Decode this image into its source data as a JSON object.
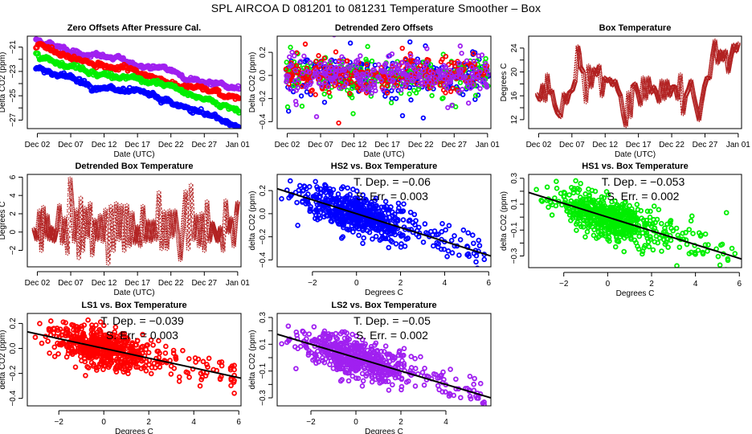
{
  "figure": {
    "title": "SPL   AIRCOA D   081201 to 081231   Temperature Smoother – Box"
  },
  "chart_data": [
    {
      "id": "zero-offsets",
      "type": "scatter",
      "title": "Zero Offsets After Pressure Cal.",
      "xlabel": "Date (UTC)",
      "ylabel": "Delta CO2 (ppm)",
      "x_ticks": [
        "Dec 02",
        "Dec 07",
        "Dec 12",
        "Dec 17",
        "Dec 22",
        "Dec 27",
        "Jan 01"
      ],
      "x_tick_days": [
        1,
        6,
        11,
        16,
        21,
        26,
        31
      ],
      "xlim_days": [
        -0.5,
        31.5
      ],
      "y_ticks": [
        -27,
        -25,
        -23,
        -21
      ],
      "y_minor_ticks": [
        -26,
        -24,
        -22
      ],
      "ylim": [
        -27.7,
        -20.1
      ],
      "series": [
        {
          "name": "LS2",
          "color": "#a020f0",
          "start": -20.4,
          "end": -24.5,
          "noise": 0.12
        },
        {
          "name": "LS1",
          "color": "#ff0000",
          "start": -21.0,
          "end": -25.3,
          "noise": 0.12
        },
        {
          "name": "HS1",
          "color": "#00ee00",
          "start": -21.5,
          "end": -26.1,
          "noise": 0.12
        },
        {
          "name": "HS2",
          "color": "#0000ff",
          "start": -22.7,
          "end": -27.5,
          "noise": 0.15
        }
      ]
    },
    {
      "id": "detrended-zero-offsets",
      "type": "scatter",
      "title": "Detrended Zero Offsets",
      "xlabel": "Date (UTC)",
      "ylabel": "Delta CO2 (ppm)",
      "x_ticks": [
        "Dec 02",
        "Dec 07",
        "Dec 12",
        "Dec 17",
        "Dec 22",
        "Dec 27",
        "Jan 01"
      ],
      "x_tick_days": [
        1,
        6,
        11,
        16,
        21,
        26,
        31
      ],
      "xlim_days": [
        -0.5,
        31.5
      ],
      "y_ticks": [
        "-0.4",
        "-0.2",
        "0.0",
        "0.2"
      ],
      "y_tick_values": [
        -0.4,
        -0.2,
        0.0,
        0.2
      ],
      "ylim": [
        -0.46,
        0.34
      ],
      "series": [
        {
          "name": "HS2",
          "color": "#0000ff",
          "spread": 0.11
        },
        {
          "name": "HS1",
          "color": "#00ee00",
          "spread": 0.1
        },
        {
          "name": "LS1",
          "color": "#ff0000",
          "spread": 0.1
        },
        {
          "name": "LS2",
          "color": "#a020f0",
          "spread": 0.09
        }
      ]
    },
    {
      "id": "box-temperature",
      "type": "line",
      "title": "Box Temperature",
      "xlabel": "Date (UTC)",
      "ylabel": "Degrees C",
      "x_ticks": [
        "Dec 02",
        "Dec 07",
        "Dec 12",
        "Dec 17",
        "Dec 22",
        "Dec 27",
        "Jan 01"
      ],
      "x_tick_days": [
        1,
        6,
        11,
        16,
        21,
        26,
        31
      ],
      "xlim_days": [
        -0.5,
        31.5
      ],
      "y_ticks": [
        12,
        16,
        20,
        24
      ],
      "y_minor_ticks": [
        14,
        18,
        22
      ],
      "ylim": [
        10.5,
        26
      ],
      "color": "#b22222",
      "days": [
        0.8,
        1.2,
        1.6,
        2.0,
        2.3,
        2.6,
        3.0,
        3.4,
        3.8,
        4.3,
        4.8,
        5.2,
        5.6,
        6.1,
        6.5,
        6.9,
        7.1,
        7.3,
        7.7,
        8.1,
        8.5,
        8.9,
        9.3,
        9.7,
        10.1,
        10.5,
        10.9,
        11.3,
        11.7,
        12.1,
        12.5,
        12.9,
        13.3,
        13.7,
        14.1,
        14.5,
        14.8,
        15.1,
        15.5,
        15.9,
        16.3,
        16.7,
        17.1,
        17.5,
        17.9,
        18.3,
        18.7,
        19.1,
        19.5,
        19.9,
        20.3,
        20.7,
        21.1,
        21.5,
        21.9,
        22.3,
        22.7,
        23.1,
        23.5,
        23.9,
        24.3,
        24.7,
        25.1,
        25.5,
        25.9,
        26.3,
        26.7,
        27.1,
        27.5,
        27.9,
        28.3,
        28.7,
        29.1,
        29.5,
        29.9,
        30.3,
        30.7,
        31.0
      ],
      "values": [
        16.2,
        15.3,
        17.8,
        15.2,
        19.5,
        16.5,
        16.8,
        14.5,
        13.2,
        12.5,
        16.3,
        14.8,
        16.5,
        17.0,
        18.5,
        24.2,
        23.0,
        20.8,
        20.0,
        15.0,
        21.0,
        17.5,
        20.5,
        19.5,
        21.0,
        16.0,
        19.0,
        18.5,
        18.8,
        17.8,
        18.5,
        17.0,
        16.0,
        13.0,
        11.0,
        16.5,
        12.5,
        17.5,
        18.0,
        16.5,
        14.5,
        19.0,
        15.5,
        19.0,
        16.5,
        17.5,
        16.5,
        15.0,
        18.5,
        15.5,
        18.5,
        16.0,
        17.5,
        17.5,
        15.5,
        19.5,
        13.0,
        16.0,
        17.0,
        18.5,
        16.0,
        14.0,
        12.0,
        15.0,
        17.5,
        19.0,
        19.0,
        22.5,
        25.2,
        21.5,
        23.5,
        22.0,
        23.5,
        20.0,
        22.5,
        24.5,
        23.5,
        24.8
      ]
    },
    {
      "id": "detrended-box-temperature",
      "type": "line",
      "title": "Detrended Box Temperature",
      "xlabel": "Date (UTC)",
      "ylabel": "Degrees C",
      "x_ticks": [
        "Dec 02",
        "Dec 07",
        "Dec 12",
        "Dec 17",
        "Dec 22",
        "Dec 27",
        "Jan 01"
      ],
      "x_tick_days": [
        1,
        6,
        11,
        16,
        21,
        26,
        31
      ],
      "xlim_days": [
        -0.5,
        31.5
      ],
      "y_ticks": [
        "-2",
        "0",
        "2",
        "4",
        "6"
      ],
      "y_tick_values": [
        -2,
        0,
        2,
        4,
        6
      ],
      "ylim": [
        -3.8,
        6.3
      ],
      "color": "#b22222",
      "days": [
        0.5,
        0.9,
        1.3,
        1.6,
        1.9,
        2.2,
        2.5,
        2.8,
        3.1,
        3.5,
        3.9,
        4.3,
        4.7,
        5.1,
        5.5,
        5.9,
        6.2,
        6.5,
        6.9,
        7.2,
        7.5,
        7.8,
        8.1,
        8.5,
        8.9,
        9.2,
        9.6,
        10.0,
        10.4,
        10.8,
        11.2,
        11.6,
        12.0,
        12.4,
        12.8,
        13.2,
        13.6,
        14.0,
        14.4,
        14.8,
        15.2,
        15.6,
        16.0,
        16.4,
        16.8,
        17.2,
        17.6,
        18.0,
        18.4,
        18.8,
        19.2,
        19.6,
        20.0,
        20.4,
        20.8,
        21.2,
        21.6,
        22.0,
        22.4,
        22.8,
        23.2,
        23.6,
        24.0,
        24.4,
        24.8,
        25.2,
        25.6,
        26.0,
        26.4,
        26.8,
        27.2,
        27.6,
        28.0,
        28.4,
        28.8,
        29.2,
        29.6,
        30.0,
        30.4,
        30.8,
        31.0
      ],
      "values": [
        0.3,
        -0.8,
        2.3,
        -2.0,
        2.7,
        -0.5,
        1.8,
        -0.8,
        0.5,
        -1.0,
        0.3,
        2.9,
        -1.2,
        1.5,
        -2.3,
        5.8,
        3.0,
        -1.0,
        2.4,
        -2.8,
        3.7,
        -2.0,
        2.6,
        -0.5,
        3.1,
        -2.5,
        1.3,
        -0.8,
        1.8,
        -1.0,
        2.4,
        -3.4,
        2.8,
        -2.0,
        3.1,
        -0.8,
        2.9,
        -2.0,
        2.9,
        -1.5,
        2.1,
        -1.2,
        0.6,
        -1.5,
        2.8,
        -1.0,
        1.2,
        -1.0,
        1.2,
        -0.8,
        4.3,
        -1.8,
        2.2,
        -1.8,
        2.3,
        -0.5,
        2.3,
        0.0,
        -3.0,
        0.5,
        4.4,
        -1.8,
        5.1,
        -0.8,
        1.8,
        -1.5,
        2.0,
        -2.0,
        3.3,
        -1.0,
        1.0,
        0.0,
        -1.0,
        0.5,
        -2.0,
        3.4,
        0.0,
        1.5,
        -1.5,
        2.0,
        3.3
      ]
    },
    {
      "id": "hs2-vs-box",
      "type": "scatter",
      "title": "HS2 vs. Box Temperature",
      "xlabel": "Degrees C",
      "ylabel": "delta CO2 (ppm)",
      "x_ticks": [
        "−2",
        "0",
        "2",
        "4",
        "6"
      ],
      "x_tick_values": [
        -2,
        0,
        2,
        4,
        6
      ],
      "xlim": [
        -3.6,
        6.1
      ],
      "y_ticks": [
        "-0.4",
        "-0.2",
        "0.0",
        "0.2"
      ],
      "y_tick_values": [
        -0.4,
        -0.2,
        0.0,
        0.2
      ],
      "ylim": [
        -0.46,
        0.34
      ],
      "color": "#0000ff",
      "slope": -0.06,
      "intercept": 0.0,
      "scatter_sd": 0.085,
      "annotation": [
        "T. Dep. =  −0.06",
        "S. Err. =  0.003"
      ]
    },
    {
      "id": "hs1-vs-box",
      "type": "scatter",
      "title": "HS1 vs. Box Temperature",
      "xlabel": "Degrees C",
      "ylabel": "delta CO2 (ppm)",
      "x_ticks": [
        "−2",
        "0",
        "2",
        "4",
        "6"
      ],
      "x_tick_values": [
        -2,
        0,
        2,
        4,
        6
      ],
      "xlim": [
        -3.6,
        6.1
      ],
      "y_ticks": [
        "-0.3",
        "-0.1",
        "0.1",
        "0.3"
      ],
      "y_tick_values": [
        -0.3,
        -0.1,
        0.1,
        0.3
      ],
      "y_minor_ticks": [
        -0.2,
        0.0,
        0.2
      ],
      "ylim": [
        -0.39,
        0.33
      ],
      "color": "#00ee00",
      "slope": -0.053,
      "intercept": 0.0,
      "scatter_sd": 0.075,
      "annotation": [
        "T. Dep. =  −0.053",
        "S. Err. =  0.002"
      ]
    },
    {
      "id": "ls1-vs-box",
      "type": "scatter",
      "title": "LS1 vs. Box Temperature",
      "xlabel": "Degrees C",
      "ylabel": "delta CO2 (ppm)",
      "x_ticks": [
        "−2",
        "0",
        "2",
        "4",
        "6"
      ],
      "x_tick_values": [
        -2,
        0,
        2,
        4,
        6
      ],
      "xlim": [
        -3.4,
        6.1
      ],
      "y_ticks": [
        "-0.4",
        "-0.2",
        "0.0",
        "0.2"
      ],
      "y_tick_values": [
        -0.4,
        -0.2,
        0.0,
        0.2
      ],
      "ylim": [
        -0.46,
        0.28
      ],
      "color": "#ff0000",
      "slope": -0.039,
      "intercept": 0.0,
      "scatter_sd": 0.075,
      "annotation": [
        "T. Dep. =  −0.039",
        "S. Err. =  0.003"
      ]
    },
    {
      "id": "ls2-vs-box",
      "type": "scatter",
      "title": "LS2 vs. Box Temperature",
      "xlabel": "Degrees C",
      "ylabel": "delta CO2 (ppm)",
      "x_ticks": [
        "−2",
        "0",
        "2",
        "4"
      ],
      "x_tick_values": [
        -2,
        0,
        2,
        4
      ],
      "xlim": [
        -3.5,
        6.0
      ],
      "y_ticks": [
        "-0.3",
        "-0.1",
        "0.1",
        "0.3"
      ],
      "y_tick_values": [
        -0.3,
        -0.1,
        0.1,
        0.3
      ],
      "y_minor_ticks": [
        -0.2,
        0.0,
        0.2
      ],
      "ylim": [
        -0.36,
        0.33
      ],
      "color": "#a020f0",
      "slope": -0.05,
      "intercept": 0.0,
      "scatter_sd": 0.07,
      "annotation": [
        "T. Dep. =  −0.05",
        "S. Err. =  0.002"
      ]
    }
  ]
}
